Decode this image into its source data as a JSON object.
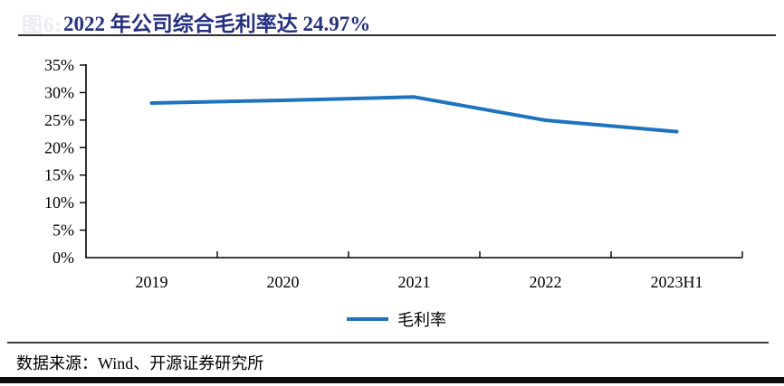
{
  "figure_label": "图6:",
  "header": {
    "title": "2022 年公司综合毛利率达 24.97%"
  },
  "legend": {
    "label": "毛利率"
  },
  "footer": {
    "source": "数据来源：Wind、开源证券研究所"
  },
  "colors": {
    "title": "#252f84",
    "line": "#1e73be",
    "axis": "#000000",
    "figure_label": "#ececf2"
  },
  "chart_data": {
    "type": "line",
    "title": "2022 年公司综合毛利率达 24.97%",
    "categories": [
      "2019",
      "2020",
      "2021",
      "2022",
      "2023H1"
    ],
    "series": [
      {
        "name": "毛利率",
        "values": [
          28.1,
          28.6,
          29.2,
          24.97,
          22.9
        ]
      }
    ],
    "xlabel": "",
    "ylabel": "",
    "ylim": [
      0,
      35
    ],
    "ytick_step": 5,
    "ytick_labels": [
      "0%",
      "5%",
      "10%",
      "15%",
      "20%",
      "25%",
      "30%",
      "35%"
    ],
    "grid": false,
    "legend_position": "bottom-center"
  }
}
